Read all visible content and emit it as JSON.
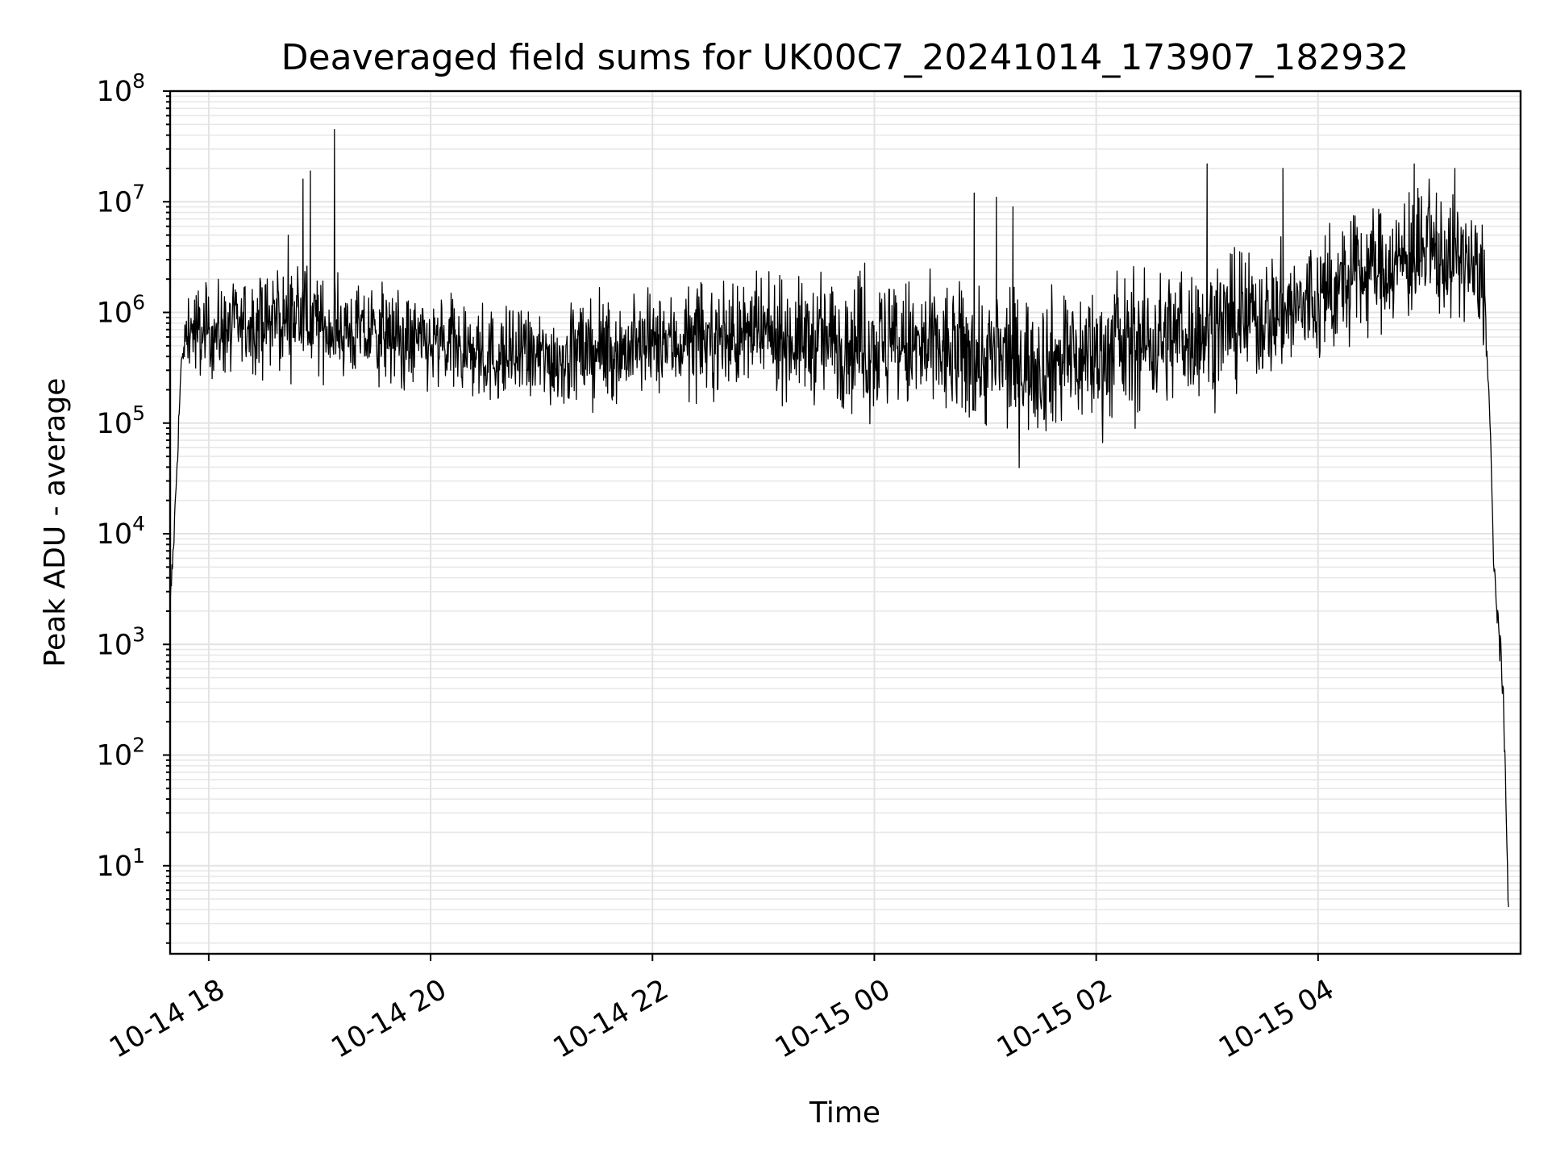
{
  "chart_data": {
    "type": "line",
    "title": "Deaveraged field sums for UK00C7_20241014_173907_182932",
    "xlabel": "Time",
    "ylabel": "Peak ADU - average",
    "yscale": "log",
    "ylim": [
      1.6,
      100000000
    ],
    "xlim": [
      "2024-10-14 17:39:07",
      "2024-10-15 05:49:32"
    ],
    "x_ticks": [
      {
        "time": "2024-10-14 18:00",
        "label": "10-14 18"
      },
      {
        "time": "2024-10-14 20:00",
        "label": "10-14 20"
      },
      {
        "time": "2024-10-14 22:00",
        "label": "10-14 22"
      },
      {
        "time": "2024-10-15 00:00",
        "label": "10-15 00"
      },
      {
        "time": "2024-10-15 02:00",
        "label": "10-15 02"
      },
      {
        "time": "2024-10-15 04:00",
        "label": "10-15 04"
      }
    ],
    "y_ticks": [
      {
        "value": 10,
        "base": "10",
        "exp": "1"
      },
      {
        "value": 100,
        "base": "10",
        "exp": "2"
      },
      {
        "value": 1000,
        "base": "10",
        "exp": "3"
      },
      {
        "value": 10000,
        "base": "10",
        "exp": "4"
      },
      {
        "value": 100000,
        "base": "10",
        "exp": "5"
      },
      {
        "value": 1000000,
        "base": "10",
        "exp": "6"
      },
      {
        "value": 10000000,
        "base": "10",
        "exp": "7"
      },
      {
        "value": 100000000,
        "base": "10",
        "exp": "8"
      }
    ],
    "grid": true,
    "line_color": "#000000",
    "series": [
      {
        "values": [
          {
            "t": "2024-10-14 17:39",
            "y": 2000
          },
          {
            "t": "2024-10-14 17:41",
            "y": 8000
          },
          {
            "t": "2024-10-14 17:43",
            "y": 50000
          },
          {
            "t": "2024-10-14 17:45",
            "y": 300000
          },
          {
            "t": "2024-10-14 17:48",
            "y": 700000
          },
          {
            "t": "2024-10-14 18:00",
            "y": 650000
          },
          {
            "t": "2024-10-14 18:30",
            "y": 800000
          },
          {
            "t": "2024-10-14 18:50",
            "y": 900000
          },
          {
            "t": "2024-10-14 19:00",
            "y": 750000
          },
          {
            "t": "2024-10-14 19:30",
            "y": 600000
          },
          {
            "t": "2024-10-14 20:00",
            "y": 500000
          },
          {
            "t": "2024-10-14 20:30",
            "y": 400000
          },
          {
            "t": "2024-10-14 21:00",
            "y": 380000
          },
          {
            "t": "2024-10-14 21:30",
            "y": 420000
          },
          {
            "t": "2024-10-14 22:00",
            "y": 500000
          },
          {
            "t": "2024-10-14 22:30",
            "y": 550000
          },
          {
            "t": "2024-10-14 23:00",
            "y": 600000
          },
          {
            "t": "2024-10-14 23:30",
            "y": 550000
          },
          {
            "t": "2024-10-15 00:00",
            "y": 500000
          },
          {
            "t": "2024-10-15 00:30",
            "y": 450000
          },
          {
            "t": "2024-10-15 01:00",
            "y": 380000
          },
          {
            "t": "2024-10-15 01:30",
            "y": 350000
          },
          {
            "t": "2024-10-15 02:00",
            "y": 400000
          },
          {
            "t": "2024-10-15 02:30",
            "y": 550000
          },
          {
            "t": "2024-10-15 03:00",
            "y": 700000
          },
          {
            "t": "2024-10-15 03:30",
            "y": 900000
          },
          {
            "t": "2024-10-15 04:00",
            "y": 1200000
          },
          {
            "t": "2024-10-15 04:30",
            "y": 2500000
          },
          {
            "t": "2024-10-15 05:00",
            "y": 3200000
          },
          {
            "t": "2024-10-15 05:20",
            "y": 3000000
          },
          {
            "t": "2024-10-15 05:30",
            "y": 1500000
          },
          {
            "t": "2024-10-15 05:33",
            "y": 100000
          },
          {
            "t": "2024-10-15 05:35",
            "y": 5000
          },
          {
            "t": "2024-10-15 05:37",
            "y": 2000
          },
          {
            "t": "2024-10-15 05:39",
            "y": 800
          },
          {
            "t": "2024-10-15 05:41",
            "y": 100
          },
          {
            "t": "2024-10-15 05:43",
            "y": 4
          }
        ],
        "noise_dex": [
          {
            "t": "2024-10-14 17:48",
            "dex": 0.35
          },
          {
            "t": "2024-10-14 23:00",
            "dex": 0.4
          },
          {
            "t": "2024-10-15 00:00",
            "dex": 0.55
          },
          {
            "t": "2024-10-15 02:00",
            "dex": 0.55
          },
          {
            "t": "2024-10-15 05:20",
            "dex": 0.45
          }
        ],
        "spikes": [
          {
            "t": "2024-10-14 18:43",
            "y": 5000000
          },
          {
            "t": "2024-10-14 18:51",
            "y": 16000000
          },
          {
            "t": "2024-10-14 18:55",
            "y": 19000000
          },
          {
            "t": "2024-10-14 19:08",
            "y": 45000000
          },
          {
            "t": "2024-10-15 00:54",
            "y": 12000000
          },
          {
            "t": "2024-10-15 01:06",
            "y": 11000000
          },
          {
            "t": "2024-10-15 01:15",
            "y": 9000000
          },
          {
            "t": "2024-10-15 03:00",
            "y": 22000000
          },
          {
            "t": "2024-10-15 03:41",
            "y": 20000000
          },
          {
            "t": "2024-10-15 04:52",
            "y": 22000000
          },
          {
            "t": "2024-10-15 05:14",
            "y": 20000000
          },
          {
            "t": "2024-10-15 05:04",
            "y": 12000000
          }
        ]
      }
    ]
  }
}
